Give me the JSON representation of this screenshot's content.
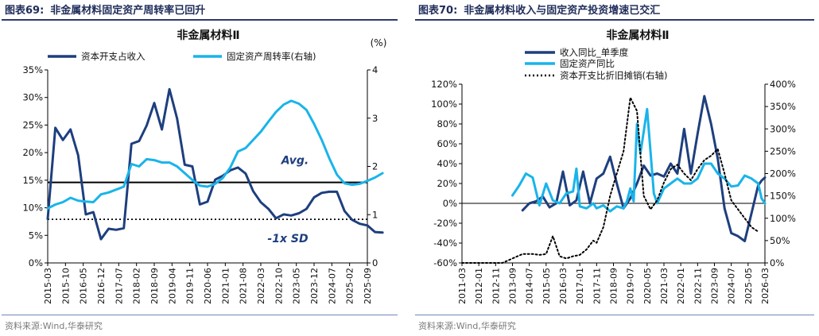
{
  "left_figure": {
    "number": "图表69:",
    "caption": "非金属材料固定资产周转率已回升",
    "source": "资料来源:Wind,华泰研究"
  },
  "right_figure": {
    "number": "图表70:",
    "caption": "非金属材料收入与固定资产投资增速已交汇",
    "source": "资料来源:Wind,华泰研究"
  },
  "colors": {
    "dark_blue": "#1e3f7e",
    "light_blue": "#19b4ea",
    "black": "#000000",
    "header_navy": "#1f2d5a"
  },
  "chart_data": [
    {
      "type": "line",
      "title": "非金属材料Ⅱ",
      "y2_unit_label": "(%)",
      "x_tick_labels": [
        "2015-03",
        "2015-10",
        "2016-05",
        "2016-12",
        "2017-07",
        "2018-02",
        "2018-09",
        "2019-04",
        "2019-11",
        "2020-06",
        "2021-01",
        "2021-08",
        "2022-03",
        "2022-10",
        "2023-05",
        "2023-12",
        "2024-07",
        "2025-02",
        "2025-09"
      ],
      "y_left_ticks": [
        "0%",
        "5%",
        "10%",
        "15%",
        "20%",
        "25%",
        "30%",
        "35%"
      ],
      "y_right_ticks": [
        "0",
        "1",
        "2",
        "3",
        "4"
      ],
      "ylim": [
        0,
        35
      ],
      "y2lim": [
        0,
        4
      ],
      "legend_position": "top",
      "annotations": [
        {
          "text": "Avg.",
          "value": 14.6
        },
        {
          "text": "-1x SD",
          "value": 7.9
        }
      ],
      "reference_lines": [
        {
          "label": "Avg.",
          "value": 14.6,
          "style": "solid"
        },
        {
          "label": "-1x SD",
          "value": 7.9,
          "style": "dotted"
        }
      ],
      "series": [
        {
          "name": "资本开支占收入",
          "axis": "left",
          "points": [
            [
              "2015-03",
              8.0
            ],
            [
              "2015-06",
              24.5
            ],
            [
              "2015-09",
              22.3
            ],
            [
              "2015-12",
              24.2
            ],
            [
              "2016-03",
              19.5
            ],
            [
              "2016-06",
              8.8
            ],
            [
              "2016-09",
              9.2
            ],
            [
              "2016-12",
              4.3
            ],
            [
              "2017-03",
              6.2
            ],
            [
              "2017-06",
              6.0
            ],
            [
              "2017-09",
              6.3
            ],
            [
              "2017-12",
              21.6
            ],
            [
              "2018-03",
              22.1
            ],
            [
              "2018-06",
              24.9
            ],
            [
              "2018-09",
              29.0
            ],
            [
              "2018-12",
              24.2
            ],
            [
              "2019-03",
              31.5
            ],
            [
              "2019-06",
              26.2
            ],
            [
              "2019-09",
              17.8
            ],
            [
              "2019-12",
              17.5
            ],
            [
              "2020-03",
              10.6
            ],
            [
              "2020-06",
              11.1
            ],
            [
              "2020-09",
              15.1
            ],
            [
              "2020-12",
              15.8
            ],
            [
              "2021-03",
              16.8
            ],
            [
              "2021-06",
              17.3
            ],
            [
              "2021-09",
              16.2
            ],
            [
              "2021-12",
              13.0
            ],
            [
              "2022-03",
              11.0
            ],
            [
              "2022-06",
              9.8
            ],
            [
              "2022-09",
              8.1
            ],
            [
              "2022-12",
              8.8
            ],
            [
              "2023-03",
              8.6
            ],
            [
              "2023-06",
              9.0
            ],
            [
              "2023-09",
              9.8
            ],
            [
              "2023-12",
              11.9
            ],
            [
              "2024-03",
              12.7
            ],
            [
              "2024-06",
              12.9
            ],
            [
              "2024-09",
              12.9
            ],
            [
              "2024-12",
              9.4
            ],
            [
              "2025-03",
              7.8
            ],
            [
              "2025-06",
              7.1
            ],
            [
              "2025-09",
              6.8
            ],
            [
              "2025-12",
              5.6
            ],
            [
              "2026-03",
              5.5
            ]
          ]
        },
        {
          "name": "固定资产周转率(右轴)",
          "axis": "right",
          "points": [
            [
              "2015-03",
              1.13
            ],
            [
              "2015-06",
              1.21
            ],
            [
              "2015-09",
              1.26
            ],
            [
              "2015-12",
              1.35
            ],
            [
              "2016-03",
              1.29
            ],
            [
              "2016-06",
              1.27
            ],
            [
              "2016-09",
              1.26
            ],
            [
              "2016-12",
              1.42
            ],
            [
              "2017-03",
              1.46
            ],
            [
              "2017-06",
              1.52
            ],
            [
              "2017-09",
              1.58
            ],
            [
              "2017-12",
              2.05
            ],
            [
              "2018-03",
              2.0
            ],
            [
              "2018-06",
              2.15
            ],
            [
              "2018-09",
              2.13
            ],
            [
              "2018-12",
              2.08
            ],
            [
              "2019-03",
              2.08
            ],
            [
              "2019-06",
              2.0
            ],
            [
              "2019-09",
              1.86
            ],
            [
              "2019-12",
              1.72
            ],
            [
              "2020-03",
              1.6
            ],
            [
              "2020-06",
              1.58
            ],
            [
              "2020-09",
              1.64
            ],
            [
              "2020-12",
              1.76
            ],
            [
              "2021-03",
              1.98
            ],
            [
              "2021-06",
              2.31
            ],
            [
              "2021-09",
              2.38
            ],
            [
              "2021-12",
              2.55
            ],
            [
              "2022-03",
              2.72
            ],
            [
              "2022-06",
              2.93
            ],
            [
              "2022-09",
              3.13
            ],
            [
              "2022-12",
              3.28
            ],
            [
              "2023-03",
              3.36
            ],
            [
              "2023-06",
              3.3
            ],
            [
              "2023-09",
              3.17
            ],
            [
              "2023-12",
              2.88
            ],
            [
              "2024-03",
              2.55
            ],
            [
              "2024-06",
              2.17
            ],
            [
              "2024-09",
              1.83
            ],
            [
              "2024-12",
              1.65
            ],
            [
              "2025-03",
              1.62
            ],
            [
              "2025-06",
              1.64
            ],
            [
              "2025-09",
              1.7
            ],
            [
              "2025-12",
              1.77
            ],
            [
              "2026-03",
              1.86
            ]
          ]
        }
      ]
    },
    {
      "type": "line",
      "title": "非金属材料Ⅱ",
      "x_tick_labels": [
        "2011-03",
        "2012-01",
        "2012-11",
        "2013-09",
        "2014-07",
        "2015-05",
        "2016-03",
        "2017-01",
        "2017-11",
        "2018-09",
        "2019-07",
        "2020-05",
        "2021-03",
        "2022-01",
        "2022-11",
        "2023-09",
        "2024-07",
        "2025-05",
        "2026-03"
      ],
      "y_left_ticks": [
        "-60%",
        "-40%",
        "-20%",
        "0%",
        "20%",
        "40%",
        "60%",
        "80%",
        "100%",
        "120%"
      ],
      "y_right_ticks": [
        "0%",
        "50%",
        "100%",
        "150%",
        "200%",
        "250%",
        "300%",
        "350%",
        "400%"
      ],
      "ylim": [
        -60,
        120
      ],
      "y2lim": [
        0,
        400
      ],
      "legend_position": "top-left",
      "series": [
        {
          "name": "收入同比_单季度",
          "axis": "left",
          "points": [
            [
              "2014-03",
              -7
            ],
            [
              "2014-07",
              0
            ],
            [
              "2014-11",
              2
            ],
            [
              "2015-03",
              7
            ],
            [
              "2015-07",
              -4
            ],
            [
              "2015-11",
              0
            ],
            [
              "2016-03",
              32
            ],
            [
              "2016-07",
              -2
            ],
            [
              "2016-11",
              3
            ],
            [
              "2017-03",
              32
            ],
            [
              "2017-07",
              0
            ],
            [
              "2017-11",
              25
            ],
            [
              "2018-03",
              30
            ],
            [
              "2018-07",
              47
            ],
            [
              "2018-11",
              20
            ],
            [
              "2019-03",
              -5
            ],
            [
              "2019-07",
              5
            ],
            [
              "2019-11",
              20
            ],
            [
              "2020-03",
              38
            ],
            [
              "2020-07",
              28
            ],
            [
              "2020-11",
              30
            ],
            [
              "2021-03",
              27
            ],
            [
              "2021-07",
              40
            ],
            [
              "2021-11",
              30
            ],
            [
              "2022-03",
              75
            ],
            [
              "2022-07",
              30
            ],
            [
              "2022-11",
              70
            ],
            [
              "2023-03",
              108
            ],
            [
              "2023-07",
              80
            ],
            [
              "2023-11",
              45
            ],
            [
              "2024-03",
              -5
            ],
            [
              "2024-07",
              -30
            ],
            [
              "2024-11",
              -33
            ],
            [
              "2025-03",
              -38
            ],
            [
              "2025-07",
              -10
            ],
            [
              "2025-11",
              18
            ],
            [
              "2026-01",
              23
            ],
            [
              "2026-03",
              26
            ]
          ]
        },
        {
          "name": "固定资产同比",
          "axis": "left",
          "points": [
            [
              "2013-09",
              8
            ],
            [
              "2014-01",
              18
            ],
            [
              "2014-05",
              30
            ],
            [
              "2014-09",
              26
            ],
            [
              "2015-01",
              -2
            ],
            [
              "2015-05",
              20
            ],
            [
              "2015-09",
              3
            ],
            [
              "2016-01",
              0
            ],
            [
              "2016-05",
              10
            ],
            [
              "2016-09",
              12
            ],
            [
              "2016-11",
              35
            ],
            [
              "2017-01",
              -3
            ],
            [
              "2017-05",
              -5
            ],
            [
              "2017-09",
              0
            ],
            [
              "2017-11",
              -5
            ],
            [
              "2018-03",
              -2
            ],
            [
              "2018-07",
              -8
            ],
            [
              "2018-11",
              -3
            ],
            [
              "2019-03",
              -5
            ],
            [
              "2019-05",
              2
            ],
            [
              "2019-07",
              15
            ],
            [
              "2019-09",
              2
            ],
            [
              "2019-11",
              80
            ],
            [
              "2020-01",
              50
            ],
            [
              "2020-05",
              95
            ],
            [
              "2020-09",
              10
            ],
            [
              "2020-11",
              0
            ],
            [
              "2021-03",
              15
            ],
            [
              "2021-07",
              20
            ],
            [
              "2021-11",
              25
            ],
            [
              "2022-03",
              20
            ],
            [
              "2022-07",
              20
            ],
            [
              "2022-11",
              25
            ],
            [
              "2023-03",
              40
            ],
            [
              "2023-07",
              40
            ],
            [
              "2023-11",
              30
            ],
            [
              "2024-03",
              25
            ],
            [
              "2024-07",
              17
            ],
            [
              "2024-11",
              18
            ],
            [
              "2025-03",
              28
            ],
            [
              "2025-07",
              25
            ],
            [
              "2025-11",
              20
            ],
            [
              "2026-01",
              5
            ],
            [
              "2026-03",
              0
            ]
          ]
        },
        {
          "name": "资本开支比折旧摊销(右轴)",
          "axis": "right",
          "points": [
            [
              "2011-03",
              0
            ],
            [
              "2011-09",
              0
            ],
            [
              "2012-03",
              0
            ],
            [
              "2012-09",
              0
            ],
            [
              "2013-03",
              0
            ],
            [
              "2013-09",
              10
            ],
            [
              "2014-03",
              20
            ],
            [
              "2014-09",
              20
            ],
            [
              "2015-01",
              18
            ],
            [
              "2015-05",
              20
            ],
            [
              "2015-09",
              60
            ],
            [
              "2016-01",
              15
            ],
            [
              "2016-05",
              10
            ],
            [
              "2016-09",
              15
            ],
            [
              "2017-01",
              18
            ],
            [
              "2017-05",
              30
            ],
            [
              "2017-09",
              50
            ],
            [
              "2017-11",
              45
            ],
            [
              "2018-03",
              80
            ],
            [
              "2018-07",
              150
            ],
            [
              "2018-11",
              200
            ],
            [
              "2019-03",
              250
            ],
            [
              "2019-07",
              370
            ],
            [
              "2019-11",
              340
            ],
            [
              "2020-03",
              150
            ],
            [
              "2020-07",
              120
            ],
            [
              "2020-11",
              140
            ],
            [
              "2021-03",
              180
            ],
            [
              "2021-07",
              210
            ],
            [
              "2021-11",
              220
            ],
            [
              "2022-03",
              200
            ],
            [
              "2022-07",
              185
            ],
            [
              "2022-11",
              210
            ],
            [
              "2023-03",
              230
            ],
            [
              "2023-07",
              240
            ],
            [
              "2023-11",
              255
            ],
            [
              "2024-03",
              200
            ],
            [
              "2024-07",
              140
            ],
            [
              "2024-11",
              120
            ],
            [
              "2025-03",
              100
            ],
            [
              "2025-07",
              80
            ],
            [
              "2025-11",
              70
            ]
          ]
        }
      ]
    }
  ]
}
